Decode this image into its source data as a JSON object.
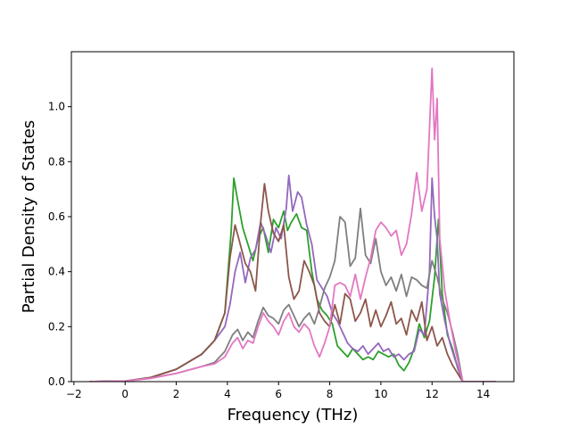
{
  "chart_data": {
    "type": "line",
    "title": "",
    "xlabel": "Frequency (THz)",
    "ylabel": "Partial Density of States",
    "xlim": [
      -2.1,
      15.2
    ],
    "ylim": [
      0.0,
      1.2
    ],
    "xticks": [
      -2,
      0,
      2,
      4,
      6,
      8,
      10,
      12,
      14
    ],
    "xtick_labels": [
      "−2",
      "0",
      "2",
      "4",
      "6",
      "8",
      "10",
      "12",
      "14"
    ],
    "yticks": [
      0.0,
      0.2,
      0.4,
      0.6,
      0.8,
      1.0
    ],
    "ytick_labels": [
      "0.0",
      "0.2",
      "0.4",
      "0.6",
      "0.8",
      "1.0"
    ],
    "grid": false,
    "legend": "none",
    "series": [
      {
        "color": "#2ca02c",
        "points": [
          [
            -1.4,
            0
          ],
          [
            0,
            0.002
          ],
          [
            1,
            0.015
          ],
          [
            2,
            0.045
          ],
          [
            3,
            0.1
          ],
          [
            3.5,
            0.15
          ],
          [
            3.9,
            0.25
          ],
          [
            4.15,
            0.55
          ],
          [
            4.25,
            0.74
          ],
          [
            4.4,
            0.66
          ],
          [
            4.6,
            0.56
          ],
          [
            4.8,
            0.5
          ],
          [
            5,
            0.44
          ],
          [
            5.2,
            0.52
          ],
          [
            5.4,
            0.56
          ],
          [
            5.6,
            0.47
          ],
          [
            5.8,
            0.59
          ],
          [
            6.0,
            0.56
          ],
          [
            6.2,
            0.62
          ],
          [
            6.35,
            0.55
          ],
          [
            6.5,
            0.58
          ],
          [
            6.7,
            0.61
          ],
          [
            6.9,
            0.56
          ],
          [
            7.1,
            0.55
          ],
          [
            7.3,
            0.4
          ],
          [
            7.5,
            0.3
          ],
          [
            7.7,
            0.26
          ],
          [
            7.9,
            0.24
          ],
          [
            8.1,
            0.21
          ],
          [
            8.3,
            0.13
          ],
          [
            8.5,
            0.11
          ],
          [
            8.7,
            0.09
          ],
          [
            8.9,
            0.12
          ],
          [
            9.1,
            0.1
          ],
          [
            9.3,
            0.08
          ],
          [
            9.5,
            0.09
          ],
          [
            9.7,
            0.08
          ],
          [
            9.9,
            0.11
          ],
          [
            10.1,
            0.1
          ],
          [
            10.3,
            0.09
          ],
          [
            10.5,
            0.1
          ],
          [
            10.7,
            0.06
          ],
          [
            10.9,
            0.04
          ],
          [
            11.1,
            0.07
          ],
          [
            11.3,
            0.12
          ],
          [
            11.5,
            0.21
          ],
          [
            11.7,
            0.16
          ],
          [
            11.9,
            0.22
          ],
          [
            12.1,
            0.38
          ],
          [
            12.25,
            0.59
          ],
          [
            12.4,
            0.32
          ],
          [
            12.6,
            0.17
          ],
          [
            12.8,
            0.12
          ],
          [
            13.0,
            0.05
          ],
          [
            13.2,
            0.0
          ],
          [
            14.5,
            0
          ]
        ]
      },
      {
        "color": "#9467bd",
        "points": [
          [
            -1.4,
            0
          ],
          [
            0,
            0.002
          ],
          [
            1,
            0.015
          ],
          [
            2,
            0.045
          ],
          [
            3,
            0.1
          ],
          [
            3.5,
            0.15
          ],
          [
            3.9,
            0.2
          ],
          [
            4.1,
            0.28
          ],
          [
            4.3,
            0.4
          ],
          [
            4.5,
            0.47
          ],
          [
            4.7,
            0.36
          ],
          [
            4.9,
            0.45
          ],
          [
            5.1,
            0.48
          ],
          [
            5.3,
            0.58
          ],
          [
            5.5,
            0.53
          ],
          [
            5.7,
            0.47
          ],
          [
            5.9,
            0.56
          ],
          [
            6.1,
            0.52
          ],
          [
            6.3,
            0.63
          ],
          [
            6.4,
            0.75
          ],
          [
            6.55,
            0.62
          ],
          [
            6.75,
            0.69
          ],
          [
            6.9,
            0.67
          ],
          [
            7.1,
            0.57
          ],
          [
            7.3,
            0.5
          ],
          [
            7.5,
            0.37
          ],
          [
            7.7,
            0.34
          ],
          [
            7.9,
            0.31
          ],
          [
            8.1,
            0.25
          ],
          [
            8.3,
            0.22
          ],
          [
            8.5,
            0.18
          ],
          [
            8.7,
            0.14
          ],
          [
            8.9,
            0.12
          ],
          [
            9.1,
            0.11
          ],
          [
            9.3,
            0.13
          ],
          [
            9.5,
            0.1
          ],
          [
            9.7,
            0.12
          ],
          [
            9.9,
            0.14
          ],
          [
            10.1,
            0.11
          ],
          [
            10.3,
            0.12
          ],
          [
            10.5,
            0.09
          ],
          [
            10.7,
            0.1
          ],
          [
            10.9,
            0.08
          ],
          [
            11.1,
            0.1
          ],
          [
            11.3,
            0.11
          ],
          [
            11.5,
            0.19
          ],
          [
            11.7,
            0.17
          ],
          [
            11.9,
            0.4
          ],
          [
            12.0,
            0.74
          ],
          [
            12.1,
            0.6
          ],
          [
            12.2,
            0.52
          ],
          [
            12.3,
            0.32
          ],
          [
            12.5,
            0.22
          ],
          [
            12.7,
            0.14
          ],
          [
            12.9,
            0.08
          ],
          [
            13.2,
            0.0
          ],
          [
            14.5,
            0
          ]
        ]
      },
      {
        "color": "#8c564b",
        "points": [
          [
            -1.4,
            0
          ],
          [
            0,
            0.002
          ],
          [
            1,
            0.015
          ],
          [
            2,
            0.045
          ],
          [
            3,
            0.1
          ],
          [
            3.5,
            0.15
          ],
          [
            3.9,
            0.25
          ],
          [
            4.1,
            0.45
          ],
          [
            4.3,
            0.57
          ],
          [
            4.5,
            0.5
          ],
          [
            4.7,
            0.43
          ],
          [
            4.9,
            0.4
          ],
          [
            5.1,
            0.33
          ],
          [
            5.3,
            0.58
          ],
          [
            5.45,
            0.72
          ],
          [
            5.6,
            0.62
          ],
          [
            5.8,
            0.54
          ],
          [
            6.0,
            0.51
          ],
          [
            6.2,
            0.57
          ],
          [
            6.4,
            0.38
          ],
          [
            6.6,
            0.3
          ],
          [
            6.8,
            0.33
          ],
          [
            7.0,
            0.44
          ],
          [
            7.2,
            0.4
          ],
          [
            7.4,
            0.35
          ],
          [
            7.6,
            0.25
          ],
          [
            7.8,
            0.22
          ],
          [
            8.0,
            0.2
          ],
          [
            8.2,
            0.28
          ],
          [
            8.4,
            0.21
          ],
          [
            8.6,
            0.32
          ],
          [
            8.8,
            0.3
          ],
          [
            9.0,
            0.22
          ],
          [
            9.2,
            0.25
          ],
          [
            9.4,
            0.3
          ],
          [
            9.6,
            0.2
          ],
          [
            9.8,
            0.26
          ],
          [
            10.0,
            0.2
          ],
          [
            10.2,
            0.24
          ],
          [
            10.4,
            0.29
          ],
          [
            10.6,
            0.21
          ],
          [
            10.8,
            0.23
          ],
          [
            11.0,
            0.17
          ],
          [
            11.2,
            0.26
          ],
          [
            11.4,
            0.22
          ],
          [
            11.6,
            0.29
          ],
          [
            11.8,
            0.15
          ],
          [
            12.0,
            0.2
          ],
          [
            12.2,
            0.13
          ],
          [
            12.4,
            0.16
          ],
          [
            12.6,
            0.1
          ],
          [
            12.8,
            0.06
          ],
          [
            13.2,
            0.0
          ],
          [
            14.5,
            0
          ]
        ]
      },
      {
        "color": "#7f7f7f",
        "points": [
          [
            -1.4,
            0
          ],
          [
            0,
            0.002
          ],
          [
            1,
            0.012
          ],
          [
            2,
            0.03
          ],
          [
            3,
            0.055
          ],
          [
            3.5,
            0.07
          ],
          [
            3.9,
            0.11
          ],
          [
            4.2,
            0.17
          ],
          [
            4.4,
            0.19
          ],
          [
            4.6,
            0.15
          ],
          [
            4.8,
            0.18
          ],
          [
            5.0,
            0.16
          ],
          [
            5.2,
            0.22
          ],
          [
            5.4,
            0.27
          ],
          [
            5.6,
            0.24
          ],
          [
            5.8,
            0.23
          ],
          [
            6.0,
            0.21
          ],
          [
            6.2,
            0.26
          ],
          [
            6.4,
            0.28
          ],
          [
            6.6,
            0.24
          ],
          [
            6.8,
            0.2
          ],
          [
            7.0,
            0.23
          ],
          [
            7.2,
            0.25
          ],
          [
            7.4,
            0.21
          ],
          [
            7.6,
            0.27
          ],
          [
            7.8,
            0.34
          ],
          [
            8.0,
            0.38
          ],
          [
            8.2,
            0.44
          ],
          [
            8.4,
            0.6
          ],
          [
            8.6,
            0.58
          ],
          [
            8.8,
            0.42
          ],
          [
            9.0,
            0.45
          ],
          [
            9.2,
            0.63
          ],
          [
            9.4,
            0.46
          ],
          [
            9.6,
            0.43
          ],
          [
            9.8,
            0.52
          ],
          [
            10.0,
            0.4
          ],
          [
            10.2,
            0.35
          ],
          [
            10.4,
            0.38
          ],
          [
            10.6,
            0.33
          ],
          [
            10.8,
            0.39
          ],
          [
            11.0,
            0.31
          ],
          [
            11.2,
            0.38
          ],
          [
            11.4,
            0.37
          ],
          [
            11.6,
            0.35
          ],
          [
            11.8,
            0.34
          ],
          [
            12.0,
            0.44
          ],
          [
            12.2,
            0.38
          ],
          [
            12.4,
            0.3
          ],
          [
            12.6,
            0.25
          ],
          [
            12.8,
            0.18
          ],
          [
            13.0,
            0.1
          ],
          [
            13.2,
            0.0
          ],
          [
            14.5,
            0
          ]
        ]
      },
      {
        "color": "#e377c2",
        "points": [
          [
            -1.4,
            0
          ],
          [
            0,
            0.002
          ],
          [
            1,
            0.012
          ],
          [
            2,
            0.03
          ],
          [
            3,
            0.055
          ],
          [
            3.5,
            0.065
          ],
          [
            3.9,
            0.09
          ],
          [
            4.2,
            0.14
          ],
          [
            4.4,
            0.16
          ],
          [
            4.6,
            0.12
          ],
          [
            4.8,
            0.15
          ],
          [
            5.0,
            0.14
          ],
          [
            5.2,
            0.2
          ],
          [
            5.4,
            0.25
          ],
          [
            5.6,
            0.22
          ],
          [
            5.8,
            0.2
          ],
          [
            6.0,
            0.17
          ],
          [
            6.2,
            0.22
          ],
          [
            6.4,
            0.25
          ],
          [
            6.6,
            0.2
          ],
          [
            6.8,
            0.18
          ],
          [
            7.0,
            0.21
          ],
          [
            7.2,
            0.19
          ],
          [
            7.4,
            0.13
          ],
          [
            7.6,
            0.09
          ],
          [
            7.8,
            0.14
          ],
          [
            8.0,
            0.2
          ],
          [
            8.2,
            0.35
          ],
          [
            8.4,
            0.36
          ],
          [
            8.6,
            0.35
          ],
          [
            8.8,
            0.31
          ],
          [
            9.0,
            0.39
          ],
          [
            9.2,
            0.3
          ],
          [
            9.4,
            0.38
          ],
          [
            9.6,
            0.45
          ],
          [
            9.8,
            0.55
          ],
          [
            10.0,
            0.58
          ],
          [
            10.2,
            0.56
          ],
          [
            10.4,
            0.53
          ],
          [
            10.6,
            0.55
          ],
          [
            10.8,
            0.46
          ],
          [
            11.0,
            0.5
          ],
          [
            11.2,
            0.61
          ],
          [
            11.4,
            0.76
          ],
          [
            11.6,
            0.62
          ],
          [
            11.8,
            0.7
          ],
          [
            12.0,
            1.14
          ],
          [
            12.1,
            0.88
          ],
          [
            12.2,
            1.03
          ],
          [
            12.3,
            0.52
          ],
          [
            12.5,
            0.33
          ],
          [
            12.7,
            0.22
          ],
          [
            12.9,
            0.12
          ],
          [
            13.2,
            0.0
          ],
          [
            14.5,
            0
          ]
        ]
      }
    ]
  }
}
